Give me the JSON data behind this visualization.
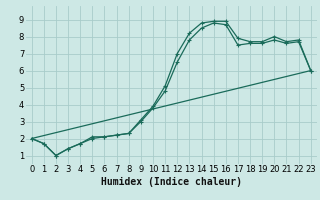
{
  "title": "",
  "xlabel": "Humidex (Indice chaleur)",
  "ylabel": "",
  "bg_color": "#cde8e5",
  "grid_color": "#a8ccca",
  "line_color": "#1a6b5a",
  "xlim": [
    -0.5,
    23.5
  ],
  "ylim": [
    0.5,
    9.8
  ],
  "xticks": [
    0,
    1,
    2,
    3,
    4,
    5,
    6,
    7,
    8,
    9,
    10,
    11,
    12,
    13,
    14,
    15,
    16,
    17,
    18,
    19,
    20,
    21,
    22,
    23
  ],
  "yticks": [
    1,
    2,
    3,
    4,
    5,
    6,
    7,
    8,
    9
  ],
  "curve1_x": [
    0,
    1,
    2,
    3,
    4,
    5,
    6,
    7,
    8,
    9,
    10,
    11,
    12,
    13,
    14,
    15,
    16,
    17,
    18,
    19,
    20,
    21,
    22,
    23
  ],
  "curve1_y": [
    2.0,
    1.7,
    1.0,
    1.4,
    1.7,
    2.1,
    2.1,
    2.2,
    2.3,
    3.1,
    3.9,
    5.1,
    7.0,
    8.2,
    8.8,
    8.9,
    8.9,
    7.9,
    7.7,
    7.7,
    8.0,
    7.7,
    7.8,
    6.0
  ],
  "curve2_x": [
    0,
    1,
    2,
    3,
    4,
    5,
    6,
    7,
    8,
    9,
    10,
    11,
    12,
    13,
    14,
    15,
    16,
    17,
    18,
    19,
    20,
    21,
    22,
    23
  ],
  "curve2_y": [
    2.0,
    1.7,
    1.0,
    1.4,
    1.7,
    2.0,
    2.1,
    2.2,
    2.3,
    3.0,
    3.8,
    4.8,
    6.5,
    7.8,
    8.5,
    8.8,
    8.7,
    7.5,
    7.6,
    7.6,
    7.8,
    7.6,
    7.7,
    6.0
  ],
  "curve3_x": [
    0,
    23
  ],
  "curve3_y": [
    2.0,
    6.0
  ],
  "marker_size": 3.5,
  "line_width": 0.9,
  "xlabel_fontsize": 7,
  "tick_fontsize": 6
}
